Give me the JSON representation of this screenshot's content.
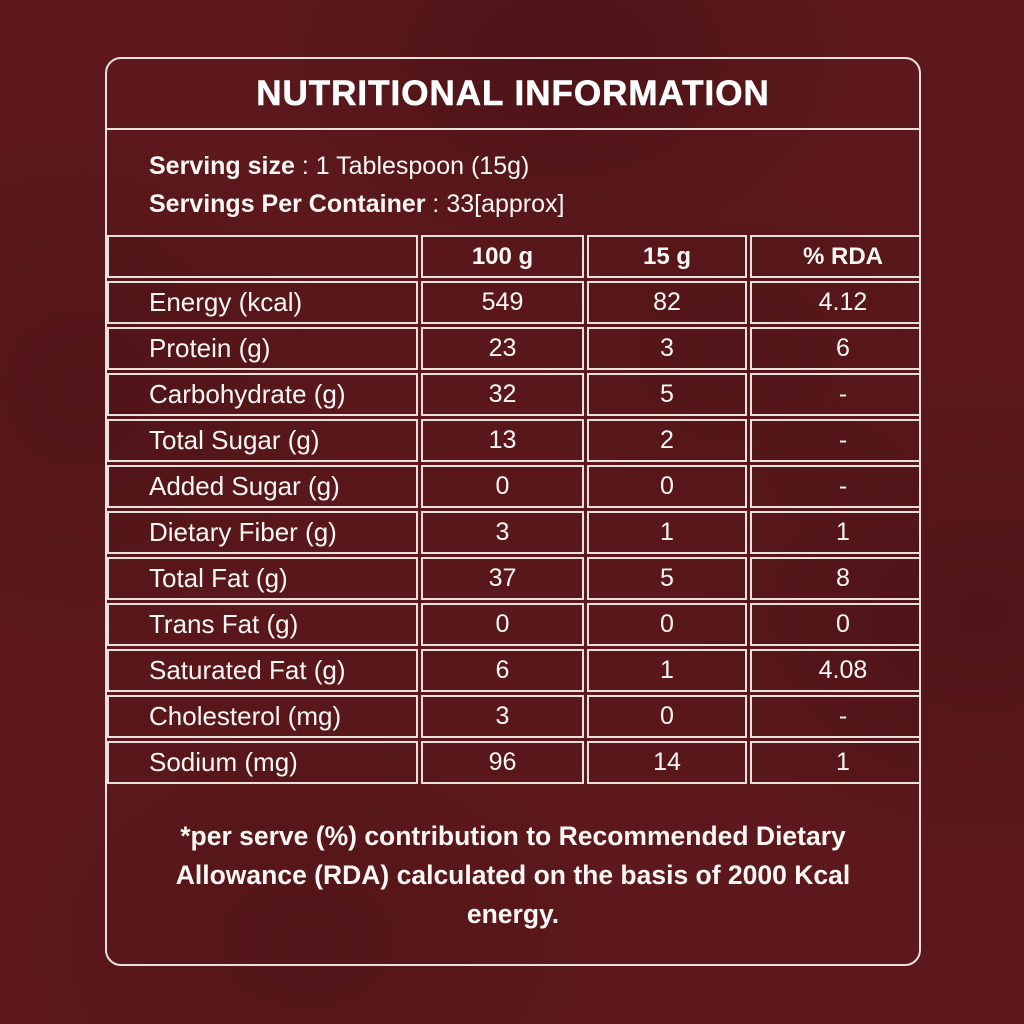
{
  "title": "NUTRITIONAL INFORMATION",
  "serving": {
    "size_label": "Serving size",
    "size_value": " : 1 Tablespoon (15g)",
    "container_label": "Servings Per Container",
    "container_value": " : 33[approx]"
  },
  "table": {
    "headers": [
      "",
      "100 g",
      "15 g",
      "% RDA"
    ],
    "rows": [
      {
        "label": "Energy (kcal)",
        "per100": "549",
        "per15": "82",
        "rda": "4.12"
      },
      {
        "label": "Protein (g)",
        "per100": "23",
        "per15": "3",
        "rda": "6"
      },
      {
        "label": "Carbohydrate (g)",
        "per100": "32",
        "per15": "5",
        "rda": "-"
      },
      {
        "label": "Total Sugar (g)",
        "per100": "13",
        "per15": "2",
        "rda": "-"
      },
      {
        "label": "Added Sugar (g)",
        "per100": "0",
        "per15": "0",
        "rda": "-"
      },
      {
        "label": "Dietary Fiber (g)",
        "per100": "3",
        "per15": "1",
        "rda": "1"
      },
      {
        "label": "Total Fat (g)",
        "per100": "37",
        "per15": "5",
        "rda": "8"
      },
      {
        "label": "Trans Fat (g)",
        "per100": "0",
        "per15": "0",
        "rda": "0"
      },
      {
        "label": "Saturated Fat (g)",
        "per100": "6",
        "per15": "1",
        "rda": "4.08"
      },
      {
        "label": "Cholesterol (mg)",
        "per100": "3",
        "per15": "0",
        "rda": "-"
      },
      {
        "label": "Sodium (mg)",
        "per100": "96",
        "per15": "14",
        "rda": "1"
      }
    ]
  },
  "footnote": "*per serve (%) contribution to Recommended Dietary Allowance (RDA) calculated on the basis of 2000 Kcal energy.",
  "colors": {
    "background": "#5c181c",
    "border_line": "#e9e0dc",
    "text": "#faf7f4"
  }
}
